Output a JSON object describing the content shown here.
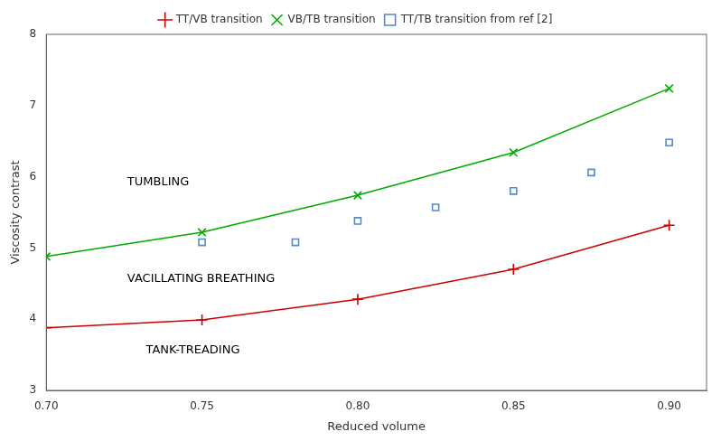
{
  "chart_data": {
    "type": "line",
    "x_label": "Reduced volume",
    "y_label": "Viscosity contrast",
    "xlim": [
      0.7,
      0.912
    ],
    "ylim": [
      3.0,
      8.0
    ],
    "xticks": [
      {
        "value": 0.7,
        "label": "0.70"
      },
      {
        "value": 0.75,
        "label": "0.75"
      },
      {
        "value": 0.8,
        "label": "0.80"
      },
      {
        "value": 0.85,
        "label": "0.85"
      },
      {
        "value": 0.9,
        "label": "0.90"
      }
    ],
    "yticks": [
      3,
      4,
      5,
      6,
      7,
      8
    ],
    "grid": false,
    "legend": "top",
    "series": [
      {
        "name": "TT/VB transition",
        "type": "line",
        "color": "#cc0000",
        "marker": "plus",
        "line_style": "solid",
        "x": [
          0.7,
          0.75,
          0.8,
          0.85,
          0.9
        ],
        "values": [
          3.88,
          3.99,
          4.28,
          4.7,
          5.32
        ]
      },
      {
        "name": "VB/TB transition",
        "type": "line",
        "color": "#00aa00",
        "marker": "x",
        "line_style": "solid",
        "x": [
          0.7,
          0.75,
          0.8,
          0.85,
          0.9
        ],
        "values": [
          4.88,
          5.22,
          5.74,
          6.34,
          7.24
        ]
      },
      {
        "name": "TT/TB transition from ref [2]",
        "type": "scatter",
        "color": "#5588cc",
        "marker": "square",
        "line_style": "none",
        "x": [
          0.75,
          0.78,
          0.8,
          0.825,
          0.85,
          0.875,
          0.9
        ],
        "values": [
          5.08,
          5.08,
          5.38,
          5.57,
          5.8,
          6.06,
          6.48
        ]
      }
    ],
    "annotations": [
      {
        "text": "TUMBLING",
        "x": 0.726,
        "y": 5.88
      },
      {
        "text": "VACILLATING BREATHING",
        "x": 0.726,
        "y": 4.52
      },
      {
        "text": "TANK-TREADING",
        "x": 0.732,
        "y": 3.52
      }
    ]
  }
}
